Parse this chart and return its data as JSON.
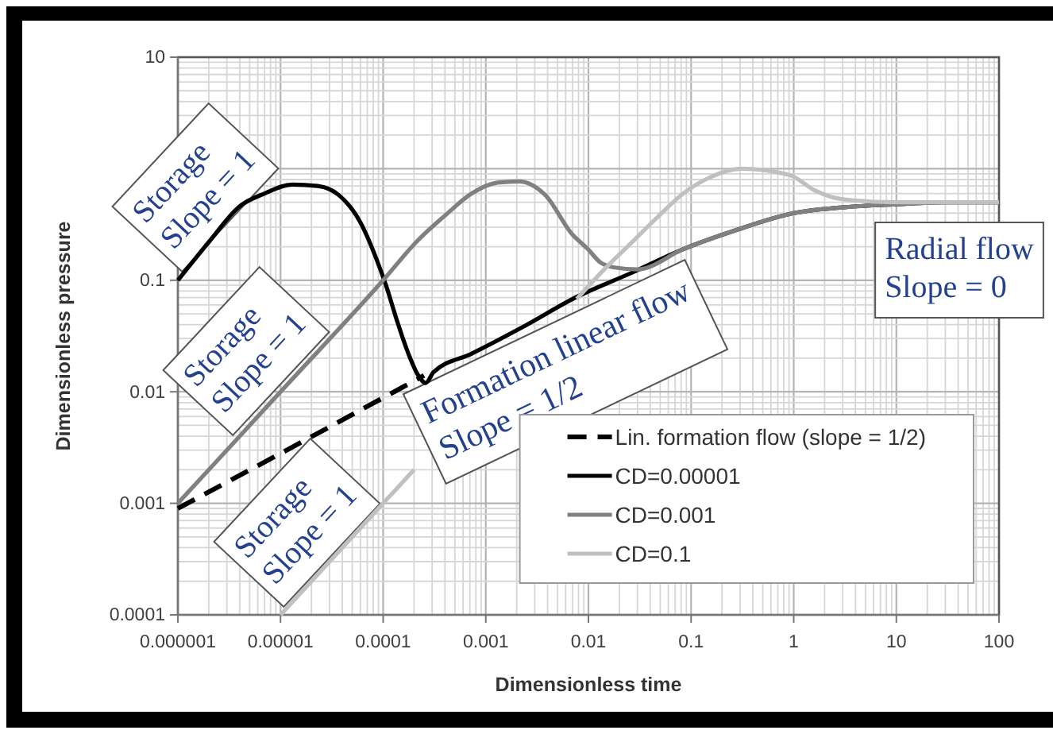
{
  "chart_data": {
    "type": "line",
    "xlabel": "Dimensionless time",
    "ylabel": "Dimensionless pressure",
    "log": "xy",
    "xlim": [
      1e-06,
      100
    ],
    "ylim": [
      0.0001,
      10
    ],
    "xticks": [
      {
        "value": 1e-06,
        "label": "0.000001"
      },
      {
        "value": 1e-05,
        "label": "0.00001"
      },
      0.0001,
      0.001,
      0.01,
      0.1,
      1,
      10,
      100
    ],
    "yticks": [
      10,
      0.1,
      0.01,
      0.001,
      0.0001
    ],
    "grid": true,
    "legend": "bottom right",
    "line_style": "solid",
    "series": [
      {
        "name": "Lin. formation flow (slope = 1/2)",
        "color": "#000000",
        "line_style": "dashed",
        "x": [
          1e-06,
          1e-05,
          0.00025
        ],
        "values": [
          0.0009,
          0.0028,
          0.014
        ]
      },
      {
        "name": "CD=0.00001",
        "color": "#000000",
        "x": [
          1e-06,
          2e-06,
          4e-06,
          7e-06,
          1.3e-05,
          2.3e-05,
          3.7e-05,
          6e-05,
          8.6e-05,
          0.000107,
          0.000138,
          0.000176,
          0.00022,
          0.00026,
          0.00031,
          0.00073,
          0.0024,
          0.0077,
          0.026,
          0.084,
          0.27,
          1,
          3,
          10,
          30,
          100
        ],
        "values": [
          0.1,
          0.22,
          0.46,
          0.6,
          0.72,
          0.7,
          0.58,
          0.33,
          0.155,
          0.089,
          0.042,
          0.022,
          0.014,
          0.012,
          0.015,
          0.022,
          0.039,
          0.071,
          0.116,
          0.19,
          0.28,
          0.4,
          0.45,
          0.48,
          0.5,
          0.5
        ]
      },
      {
        "name": "CD=0.001",
        "color": "#808080",
        "x": [
          1e-06,
          1e-05,
          0.0001,
          0.00022,
          0.0004,
          0.00073,
          0.0013,
          0.0021,
          0.0038,
          0.0069,
          0.0099,
          0.013,
          0.018,
          0.03,
          0.084,
          0.27,
          1,
          3,
          10,
          30,
          100
        ],
        "values": [
          0.001,
          0.01,
          0.1,
          0.23,
          0.38,
          0.6,
          0.75,
          0.77,
          0.58,
          0.26,
          0.19,
          0.145,
          0.13,
          0.125,
          0.19,
          0.28,
          0.4,
          0.45,
          0.48,
          0.5,
          0.5
        ]
      },
      {
        "name": "CD=0.1",
        "color": "#c0c0c0",
        "x": [
          1e-05,
          0.0001,
          0.0002,
          0.001,
          0.0077,
          0.014,
          0.026,
          0.046,
          0.084,
          0.15,
          0.31,
          0.91,
          1.6,
          2.3,
          3.8,
          10,
          100
        ],
        "values": [
          0.0001,
          0.001,
          0.002,
          null,
          0.068,
          0.123,
          0.215,
          0.36,
          0.6,
          0.83,
          1.0,
          0.88,
          0.64,
          0.56,
          0.52,
          0.5,
          0.5
        ]
      }
    ],
    "annotations": [
      "Storage\nSlope = 1",
      "Storage\nSlope = 1",
      "Storage\nSlope = 1",
      "Formation linear flow\nSlope = 1/2",
      "Radial flow\nSlope = 0"
    ]
  }
}
